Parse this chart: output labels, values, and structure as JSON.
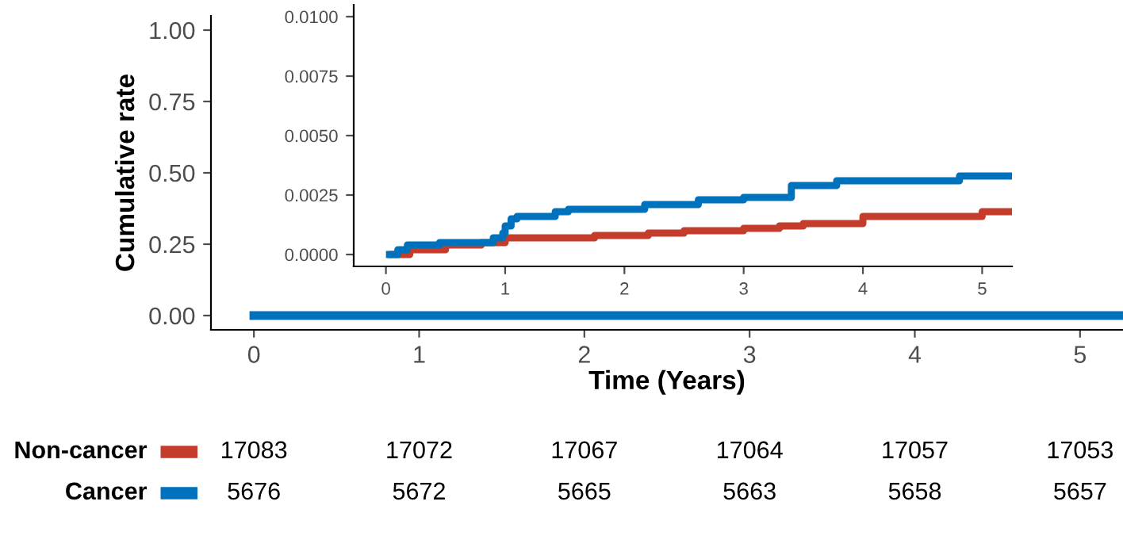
{
  "chart_data": [
    {
      "type": "step",
      "xlabel": "Time (Years)",
      "ylabel": "Cumulative rate",
      "xlim": [
        -0.26,
        5.26
      ],
      "ylim": [
        -0.05,
        1.05
      ],
      "xticks": [
        0,
        1,
        2,
        3,
        4,
        5
      ],
      "yticks": [
        {
          "value": 0,
          "label": "0.00"
        },
        {
          "value": 0.25,
          "label": "0.25"
        },
        {
          "value": 0.5,
          "label": "0.50"
        },
        {
          "value": 0.75,
          "label": "0.75"
        },
        {
          "value": 1,
          "label": "1.00"
        }
      ],
      "grid": false,
      "legend": false,
      "series": [
        {
          "color": "#0072bd",
          "x": [
            0,
            5.25
          ],
          "values": [
            0,
            0
          ]
        }
      ]
    },
    {
      "type": "step",
      "xlim": [
        -0.27,
        5.25
      ],
      "ylim": [
        -0.0005,
        0.0105
      ],
      "xticks": [
        0,
        1,
        2,
        3,
        4,
        5
      ],
      "yticks": [
        {
          "value": 0,
          "label": "0.0000"
        },
        {
          "value": 0.0025,
          "label": "0.0025"
        },
        {
          "value": 0.005,
          "label": "0.0050"
        },
        {
          "value": 0.0075,
          "label": "0.0075"
        },
        {
          "value": 0.01,
          "label": "0.0100"
        }
      ],
      "grid": false,
      "legend": false,
      "series": [
        {
          "color": "#c43c2b",
          "x": [
            0.05,
            0.2,
            0.5,
            0.8,
            1.0,
            1.75,
            2.2,
            2.5,
            3.0,
            3.3,
            3.5,
            4.0,
            5.0,
            5.25
          ],
          "values": [
            0,
            0.0002,
            0.0004,
            0.0005,
            0.0007,
            0.0008,
            0.0009,
            0.001,
            0.0011,
            0.0012,
            0.0013,
            0.0016,
            0.0018,
            0.0018
          ]
        },
        {
          "color": "#0072bd",
          "x": [
            0.03,
            0.1,
            0.18,
            0.45,
            0.9,
            0.98,
            1.0,
            1.05,
            1.1,
            1.42,
            1.53,
            2.17,
            2.62,
            3.0,
            3.4,
            3.78,
            4.81,
            5.25
          ],
          "values": [
            0,
            0.0002,
            0.0004,
            0.0005,
            0.0007,
            0.0009,
            0.0012,
            0.0015,
            0.0016,
            0.0018,
            0.0019,
            0.0021,
            0.0023,
            0.0024,
            0.0029,
            0.0031,
            0.0033,
            0.0033
          ]
        }
      ]
    },
    {
      "type": "other",
      "series": [
        {
          "name": "Non-cancer",
          "color": "#c43c2b"
        },
        {
          "name": "Cancer",
          "color": "#0072bd"
        }
      ],
      "annotations": [
        "17083",
        "17072",
        "17067",
        "17064",
        "17057",
        "17053",
        "5676",
        "5672",
        "5665",
        "5663",
        "5658",
        "5657"
      ]
    }
  ]
}
